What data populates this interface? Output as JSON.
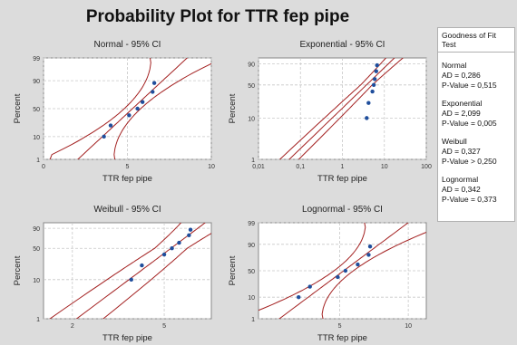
{
  "title": "Probability Plot for TTR fep pipe",
  "goodness": {
    "title": "Goodness of Fit Test",
    "entries": [
      {
        "name": "Normal",
        "ad": "AD = 0,286",
        "p": "P-Value = 0,515"
      },
      {
        "name": "Exponential",
        "ad": "AD = 2,099",
        "p": "P-Value = 0,005"
      },
      {
        "name": "Weibull",
        "ad": "AD = 0,327",
        "p": "P-Value > 0,250"
      },
      {
        "name": "Lognormal",
        "ad": "AD = 0,342",
        "p": "P-Value = 0,373"
      }
    ]
  },
  "colors": {
    "points": "#1f4e9c",
    "lines": "#a32020",
    "grid": "#c8c8c8",
    "plot_bg": "#ffffff",
    "page_bg": "#dcdcdc"
  },
  "chart_data": [
    {
      "type": "scatter",
      "title": "Normal - 95% CI",
      "xlabel": "TTR fep pipe",
      "ylabel": "Percent",
      "x_scale": "linear",
      "xlim": [
        0,
        10
      ],
      "x_ticks": [
        "0",
        "5",
        "10"
      ],
      "y_ticks": [
        "1",
        "10",
        "50",
        "90",
        "99"
      ],
      "grid": true,
      "points": [
        [
          3.6,
          10.0
        ],
        [
          4.0,
          22.0
        ],
        [
          5.1,
          38.0
        ],
        [
          5.6,
          50.0
        ],
        [
          5.9,
          62.0
        ],
        [
          6.5,
          78.0
        ],
        [
          6.6,
          88.0
        ]
      ],
      "fit": {
        "mu": 5.3,
        "sigma": 1.4
      }
    },
    {
      "type": "scatter",
      "title": "Exponential - 95% CI",
      "xlabel": "TTR fep pipe",
      "ylabel": "Percent",
      "x_scale": "log",
      "xlim": [
        0.01,
        100
      ],
      "x_ticks": [
        "0,01",
        "0,1",
        "1",
        "10",
        "100"
      ],
      "y_ticks": [
        "1",
        "10",
        "50",
        "90"
      ],
      "grid": true,
      "points": [
        [
          3.8,
          10.0
        ],
        [
          4.2,
          22.0
        ],
        [
          5.2,
          38.0
        ],
        [
          5.6,
          50.0
        ],
        [
          5.9,
          62.0
        ],
        [
          6.4,
          78.0
        ],
        [
          6.7,
          88.0
        ]
      ],
      "fit": {
        "mean": 5.4
      }
    },
    {
      "type": "scatter",
      "title": "Weibull - 95% CI",
      "xlabel": "TTR fep pipe",
      "ylabel": "Percent",
      "x_scale": "log",
      "xlim": [
        1.5,
        8
      ],
      "x_ticks": [
        "2",
        "5"
      ],
      "y_ticks": [
        "1",
        "10",
        "50",
        "90"
      ],
      "grid": true,
      "points": [
        [
          3.6,
          10.0
        ],
        [
          4.0,
          22.0
        ],
        [
          5.0,
          38.0
        ],
        [
          5.4,
          50.0
        ],
        [
          5.8,
          62.0
        ],
        [
          6.4,
          78.0
        ],
        [
          6.5,
          88.0
        ]
      ],
      "fit": {
        "shape": 4.5,
        "scale": 5.8
      }
    },
    {
      "type": "scatter",
      "title": "Lognormal - 95% CI",
      "xlabel": "TTR fep pipe",
      "ylabel": "Percent",
      "x_scale": "log",
      "xlim": [
        2.2,
        12
      ],
      "x_ticks": [
        "5",
        "10"
      ],
      "y_ticks": [
        "1",
        "10",
        "50",
        "90",
        "99"
      ],
      "grid": true,
      "points": [
        [
          3.3,
          10.0
        ],
        [
          3.7,
          22.0
        ],
        [
          4.9,
          38.0
        ],
        [
          5.3,
          50.0
        ],
        [
          6.0,
          62.0
        ],
        [
          6.7,
          78.0
        ],
        [
          6.8,
          88.0
        ]
      ],
      "fit": {
        "mu": 1.65,
        "sigma": 0.28
      }
    }
  ]
}
